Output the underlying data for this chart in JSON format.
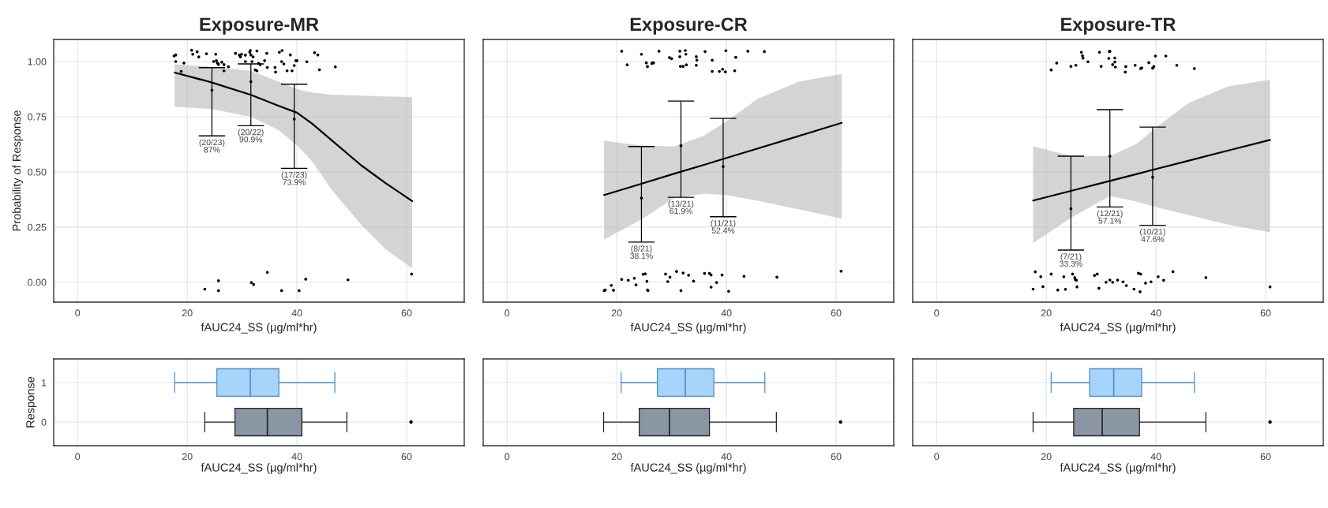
{
  "chart_data": [
    {
      "type": "line",
      "title": "Exposure-MR",
      "xlabel": "fAUC24_SS (µg/ml*hr)",
      "ylabel": "Probability of Response",
      "xlim": [
        -4.35,
        70.5
      ],
      "xticks": [
        0,
        20,
        40,
        60
      ],
      "ylim": [
        -0.09,
        1.1
      ],
      "yticks": [
        {
          "value": 0,
          "label": "0.00"
        },
        {
          "value": 0.25,
          "label": "0.25"
        },
        {
          "value": 0.5,
          "label": "0.50"
        },
        {
          "value": 0.75,
          "label": "0.75"
        },
        {
          "value": 1,
          "label": "1.00"
        }
      ],
      "grid": true,
      "series": [
        {
          "type": "line",
          "color": "#000000",
          "x": [
            17.7,
            24.5,
            31.6,
            36.6,
            40,
            42.7,
            46.3,
            51.7,
            56.1,
            61
          ],
          "values": [
            0.95,
            0.905,
            0.849,
            0.8,
            0.768,
            0.72,
            0.644,
            0.53,
            0.45,
            0.368
          ],
          "lower": [
            0.795,
            0.785,
            0.75,
            0.69,
            0.62,
            0.55,
            0.42,
            0.26,
            0.15,
            0.064
          ],
          "upper": [
            0.987,
            0.976,
            0.958,
            0.91,
            0.875,
            0.86,
            0.85,
            0.845,
            0.842,
            0.839
          ]
        },
        {
          "type": "scatter",
          "color": "#000000",
          "marker": "circle",
          "x": [
            17.6,
            17.9,
            17.9,
            18.9,
            19.4,
            20.8,
            21.0,
            21.8,
            22.1,
            23.5,
            24.8,
            25.2,
            25.3,
            25.5,
            25.7,
            26.3,
            26.7,
            26.7,
            27.5,
            28.8,
            29.5,
            29.7,
            29.9,
            30.6,
            30.6,
            31.4,
            31.5,
            31.6,
            31.8,
            32.0,
            32.4,
            32.7,
            32.7,
            33.0,
            33.3,
            34.1,
            34.5,
            34.6,
            36.0,
            36.1,
            36.8,
            37.3,
            37.2,
            37.6,
            38.2,
            38.8,
            39.1,
            39.5,
            39.8,
            40.0,
            41.8,
            43.2,
            43.8,
            44.1,
            47.0,
            23.2,
            25.7,
            25.7,
            31.7,
            32.1,
            34.6,
            37.2,
            40.4,
            41.6,
            49.3,
            60.9
          ],
          "values": [
            1.025,
            1.03,
            1.0,
            0.955,
            0.993,
            1.051,
            1.033,
            1.044,
            1.021,
            1.035,
            1.0,
            1.033,
            1.004,
            0.993,
            0.987,
            0.997,
            0.958,
            0.986,
            0.976,
            1.037,
            1.029,
            1.021,
            1.033,
            1.029,
            1.0,
            1.042,
            1.05,
            1.03,
            1.0,
            1.021,
            0.962,
            1.048,
            0.958,
            0.992,
            0.986,
            1.004,
            1.037,
            0.973,
            0.973,
            0.952,
            1.042,
            1.05,
            1.0,
            0.989,
            0.958,
            1.03,
            0.958,
            0.982,
            1.004,
            1.004,
            0.999,
            1.04,
            1.03,
            0.963,
            0.976,
            -0.031,
            0.007,
            -0.038,
            -0.001,
            -0.01,
            0.045,
            -0.038,
            -0.038,
            0.014,
            0.011,
            0.037
          ]
        },
        {
          "type": "scatter",
          "color": "#000000",
          "marker": "circle",
          "x": [
            24.5,
            31.6,
            39.5
          ],
          "values": [
            0.87,
            0.909,
            0.739
          ],
          "errors": [
            [
              0.663,
              0.972
            ],
            [
              0.709,
              0.989
            ],
            [
              0.516,
              0.897
            ]
          ]
        }
      ],
      "annotations": [
        {
          "text": "(20/23)\n87%",
          "x": 24.5,
          "y": 0.663
        },
        {
          "text": "(20/22)\n90.9%",
          "x": 31.6,
          "y": 0.709
        },
        {
          "text": "(17/23)\n73.9%",
          "x": 39.5,
          "y": 0.516
        }
      ]
    },
    {
      "type": "line",
      "title": "Exposure-CR",
      "xlabel": "fAUC24_SS (µg/ml*hr)",
      "xlim": [
        -4.35,
        70.5
      ],
      "xticks": [
        0,
        20,
        40,
        60
      ],
      "ylim": [
        -0.09,
        1.1
      ],
      "yticks": [
        0,
        0.25,
        0.5,
        0.75,
        1
      ],
      "grid": true,
      "tick_labels": "x",
      "series": [
        {
          "type": "line",
          "color": "#000000",
          "x": [
            17.7,
            24.6,
            30.5,
            35.9,
            40,
            45.7,
            53.1,
            61
          ],
          "values": [
            0.395,
            0.447,
            0.492,
            0.532,
            0.563,
            0.606,
            0.662,
            0.722
          ],
          "lower": [
            0.194,
            0.286,
            0.382,
            0.401,
            0.395,
            0.369,
            0.331,
            0.288
          ],
          "upper": [
            0.641,
            0.619,
            0.615,
            0.664,
            0.728,
            0.831,
            0.908,
            0.944
          ]
        },
        {
          "type": "scatter",
          "color": "#000000",
          "marker": "circle",
          "x": [
            20.9,
            21.9,
            24.5,
            25.4,
            25.6,
            26.4,
            26.5,
            26.7,
            27.7,
            29.6,
            30.0,
            31.5,
            31.5,
            31.6,
            32.1,
            32.5,
            32.6,
            32.7,
            34.5,
            34.6,
            34.5,
            36.1,
            37.4,
            37.4,
            38.7,
            39.3,
            39.8,
            39.9,
            41.5,
            41.7,
            43.9,
            46.9,
            17.7,
            17.9,
            19.0,
            19.4,
            20.9,
            22.1,
            23.2,
            23.5,
            24.8,
            25.2,
            25.5,
            25.6,
            25.7,
            28.9,
            29.3,
            29.7,
            30.9,
            31.7,
            32.1,
            33.1,
            34.0,
            36.0,
            36.9,
            37.2,
            37.2,
            38.2,
            39.2,
            40.4,
            43.2,
            49.2,
            60.9
          ],
          "values": [
            1.047,
            0.985,
            1.033,
            0.994,
            0.977,
            0.991,
            0.994,
            0.994,
            1.047,
            1.018,
            1.013,
            1.047,
            1.022,
            0.978,
            0.978,
            1.05,
            1.033,
            0.985,
            1.022,
            1.006,
            0.983,
            1.045,
            1.006,
            0.955,
            0.955,
            0.965,
            0.953,
            1.049,
            0.958,
            1.019,
            1.047,
            1.045,
            -0.038,
            -0.035,
            -0.014,
            -0.036,
            0.013,
            0.009,
            0.018,
            -0.012,
            0.036,
            0.038,
            0.004,
            -0.035,
            -0.038,
            0.037,
            0.003,
            0.023,
            0.049,
            -0.038,
            0.042,
            0.032,
            0.005,
            0.04,
            0.04,
            0.033,
            -0.022,
            -0.001,
            0.033,
            -0.041,
            0.027,
            0.023,
            0.05
          ]
        },
        {
          "type": "scatter",
          "color": "#000000",
          "marker": "circle",
          "x": [
            24.5,
            31.7,
            39.4
          ],
          "values": [
            0.381,
            0.619,
            0.524
          ],
          "errors": [
            [
              0.182,
              0.615
            ],
            [
              0.385,
              0.821
            ],
            [
              0.297,
              0.742
            ]
          ]
        }
      ],
      "annotations": [
        {
          "text": "(8/21)\n38.1%",
          "x": 24.5,
          "y": 0.182
        },
        {
          "text": "(13/21)\n61.9%",
          "x": 31.7,
          "y": 0.385
        },
        {
          "text": "(11/21)\n52.4%",
          "x": 39.4,
          "y": 0.297
        }
      ]
    },
    {
      "type": "line",
      "title": "Exposure-TR",
      "xlabel": "fAUC24_SS (µg/ml*hr)",
      "xlim": [
        -4.35,
        70.5
      ],
      "xticks": [
        0,
        20,
        40,
        60
      ],
      "ylim": [
        -0.09,
        1.1
      ],
      "yticks": [
        0,
        0.25,
        0.5,
        0.75,
        1
      ],
      "grid": true,
      "tick_labels": "x",
      "series": [
        {
          "type": "line",
          "color": "#000000",
          "x": [
            17.6,
            24.5,
            31.6,
            36.5,
            40,
            46,
            53.2,
            60.8
          ],
          "values": [
            0.37,
            0.414,
            0.459,
            0.49,
            0.513,
            0.551,
            0.597,
            0.645
          ],
          "lower": [
            0.177,
            0.292,
            0.391,
            0.366,
            0.341,
            0.304,
            0.261,
            0.226
          ],
          "upper": [
            0.617,
            0.571,
            0.571,
            0.627,
            0.701,
            0.813,
            0.887,
            0.918
          ]
        },
        {
          "type": "scatter",
          "color": "#000000",
          "marker": "circle",
          "x": [
            20.9,
            21.9,
            24.5,
            25.4,
            26.4,
            26.6,
            26.7,
            27.6,
            29.7,
            30.0,
            31.4,
            31.5,
            31.6,
            32.1,
            32.5,
            32.5,
            32.6,
            34.5,
            34.4,
            36.2,
            37.2,
            37.4,
            38.7,
            39.4,
            39.6,
            39.9,
            41.8,
            43.8,
            47.0,
            17.6,
            18.0,
            19.0,
            19.4,
            20.9,
            22.1,
            23.2,
            23.5,
            24.8,
            25.2,
            25.3,
            25.5,
            25.6,
            28.8,
            29.3,
            29.6,
            30.9,
            31.6,
            32.1,
            33.0,
            34.0,
            34.6,
            36.0,
            36.8,
            37.1,
            37.2,
            38.1,
            39.1,
            40.4,
            41.4,
            43.1,
            49.1,
            60.8
          ],
          "values": [
            0.962,
            0.993,
            0.978,
            0.983,
            1.042,
            1.026,
            1.015,
            0.999,
            1.042,
            0.978,
            1.014,
            1.046,
            1.046,
            0.986,
            1.016,
            0.998,
            0.975,
            0.977,
            0.952,
            0.983,
            0.968,
            0.971,
            0.995,
            0.97,
            0.977,
            1.025,
            1.025,
            0.983,
            0.968,
            -0.031,
            0.047,
            0.025,
            -0.02,
            0.037,
            -0.035,
            0.025,
            -0.032,
            0.037,
            0.021,
            0.012,
            0.009,
            -0.021,
            0.031,
            0.037,
            -0.027,
            0,
            0.01,
            0,
            0.01,
            0.002,
            -0.015,
            -0.031,
            0.041,
            -0.043,
            0.037,
            -0.004,
            0.002,
            0.025,
            0.009,
            0.048,
            0.021,
            -0.021
          ]
        },
        {
          "type": "scatter",
          "color": "#000000",
          "marker": "circle",
          "x": [
            24.5,
            31.6,
            39.4
          ],
          "values": [
            0.333,
            0.571,
            0.476
          ],
          "errors": [
            [
              0.146,
              0.571
            ],
            [
              0.341,
              0.782
            ],
            [
              0.258,
              0.703
            ]
          ]
        }
      ],
      "annotations": [
        {
          "text": "(7/21)\n33.3%",
          "x": 24.5,
          "y": 0.146
        },
        {
          "text": "(12/21)\n57.1%",
          "x": 31.6,
          "y": 0.341
        },
        {
          "text": "(10/21)\n47.6%",
          "x": 39.4,
          "y": 0.258
        }
      ]
    },
    {
      "type": "box",
      "orientation": "horizontal",
      "xlabel": "fAUC24_SS (µg/ml*hr)",
      "ylabel": "Response",
      "xlim": [
        -4.35,
        70.5
      ],
      "xticks": [
        0,
        20,
        40,
        60
      ],
      "grid": true,
      "categories": [
        "1",
        "0"
      ],
      "colors": [
        "#a6d4fa",
        "#8a96a3"
      ],
      "boxes": [
        {
          "low": 17.7,
          "q1": 25.4,
          "median": 31.5,
          "q3": 36.7,
          "high": 46.9
        },
        {
          "low": 23.2,
          "q1": 28.7,
          "median": 34.6,
          "q3": 40.9,
          "high": 49.1,
          "outliers": [
            60.8
          ]
        }
      ]
    },
    {
      "type": "box",
      "orientation": "horizontal",
      "xlabel": "fAUC24_SS (µg/ml*hr)",
      "xlim": [
        -4.35,
        70.5
      ],
      "xticks": [
        0,
        20,
        40,
        60
      ],
      "grid": true,
      "tick_labels": "x",
      "categories": [
        "1",
        "0"
      ],
      "colors": [
        "#a6d4fa",
        "#8a96a3"
      ],
      "boxes": [
        {
          "low": 20.8,
          "q1": 27.4,
          "median": 32.5,
          "q3": 37.7,
          "high": 47.0
        },
        {
          "low": 17.6,
          "q1": 24.1,
          "median": 29.6,
          "q3": 36.9,
          "high": 49.1,
          "outliers": [
            60.8
          ]
        }
      ]
    },
    {
      "type": "box",
      "orientation": "horizontal",
      "xlabel": "fAUC24_SS (µg/ml*hr)",
      "xlim": [
        -4.35,
        70.5
      ],
      "xticks": [
        0,
        20,
        40,
        60
      ],
      "grid": true,
      "tick_labels": "x",
      "categories": [
        "1",
        "0"
      ],
      "colors": [
        "#a6d4fa",
        "#8a96a3"
      ],
      "boxes": [
        {
          "low": 20.9,
          "q1": 27.9,
          "median": 32.3,
          "q3": 37.4,
          "high": 47.0
        },
        {
          "low": 17.6,
          "q1": 25.0,
          "median": 30.2,
          "q3": 37.0,
          "high": 49.1,
          "outliers": [
            60.8
          ]
        }
      ]
    }
  ]
}
